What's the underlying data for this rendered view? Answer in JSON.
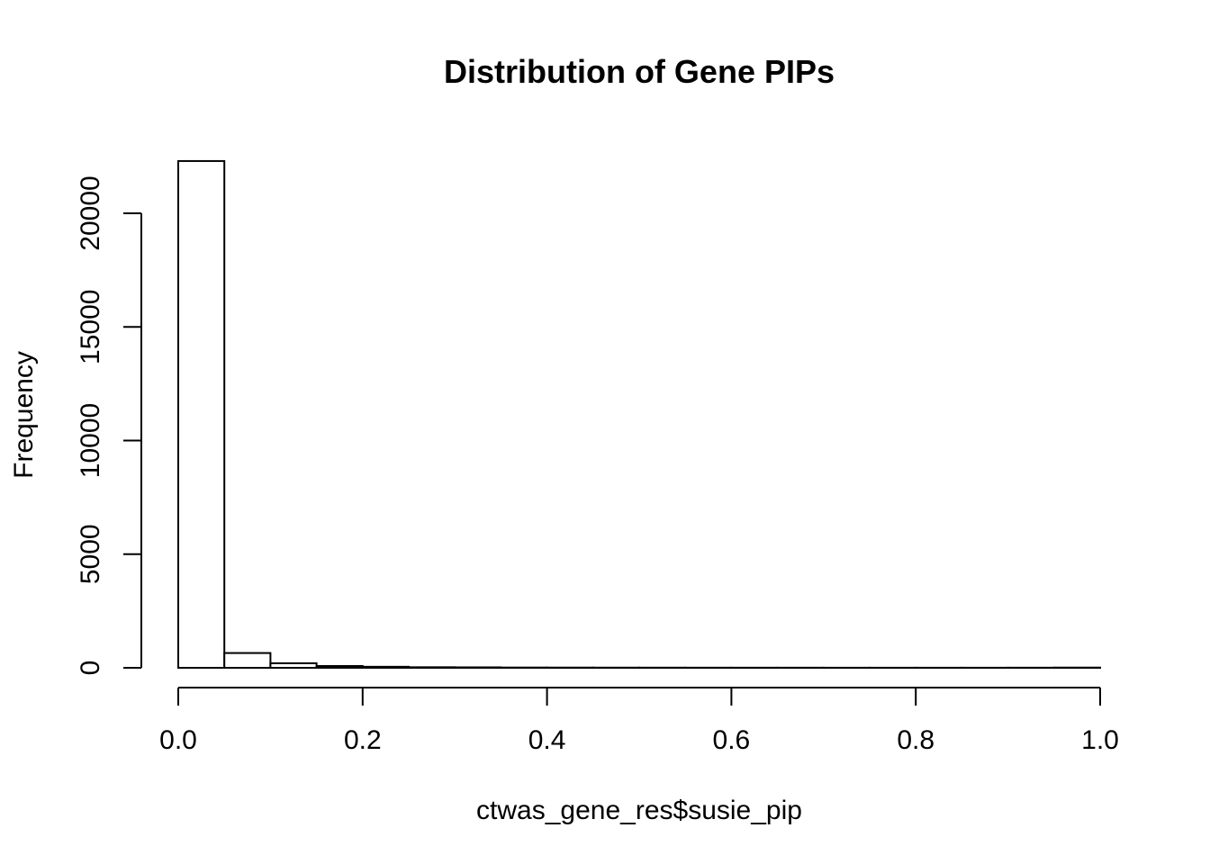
{
  "chart_data": {
    "type": "bar",
    "title": "Distribution of Gene PIPs",
    "xlabel": "ctwas_gene_res$susie_pip",
    "ylabel": "Frequency",
    "xlim": [
      0,
      1
    ],
    "ylim": [
      0,
      20000
    ],
    "x_ticks": [
      "0.0",
      "0.2",
      "0.4",
      "0.6",
      "0.8",
      "1.0"
    ],
    "y_ticks": [
      "0",
      "5000",
      "10000",
      "15000",
      "20000"
    ],
    "grid": false,
    "legend": "none",
    "bin_width": 0.05,
    "bins": [
      {
        "x0": 0.0,
        "x1": 0.05,
        "count": 22300
      },
      {
        "x0": 0.05,
        "x1": 0.1,
        "count": 650
      },
      {
        "x0": 0.1,
        "x1": 0.15,
        "count": 200
      },
      {
        "x0": 0.15,
        "x1": 0.2,
        "count": 80
      },
      {
        "x0": 0.2,
        "x1": 0.25,
        "count": 45
      },
      {
        "x0": 0.25,
        "x1": 0.3,
        "count": 25
      },
      {
        "x0": 0.3,
        "x1": 0.35,
        "count": 20
      },
      {
        "x0": 0.35,
        "x1": 0.4,
        "count": 12
      },
      {
        "x0": 0.4,
        "x1": 0.45,
        "count": 10
      },
      {
        "x0": 0.45,
        "x1": 0.5,
        "count": 8
      },
      {
        "x0": 0.5,
        "x1": 0.55,
        "count": 7
      },
      {
        "x0": 0.55,
        "x1": 0.6,
        "count": 6
      },
      {
        "x0": 0.6,
        "x1": 0.65,
        "count": 5
      },
      {
        "x0": 0.65,
        "x1": 0.7,
        "count": 5
      },
      {
        "x0": 0.7,
        "x1": 0.75,
        "count": 4
      },
      {
        "x0": 0.75,
        "x1": 0.8,
        "count": 4
      },
      {
        "x0": 0.8,
        "x1": 0.85,
        "count": 4
      },
      {
        "x0": 0.85,
        "x1": 0.9,
        "count": 4
      },
      {
        "x0": 0.9,
        "x1": 0.95,
        "count": 5
      },
      {
        "x0": 0.95,
        "x1": 1.0,
        "count": 10
      }
    ]
  }
}
